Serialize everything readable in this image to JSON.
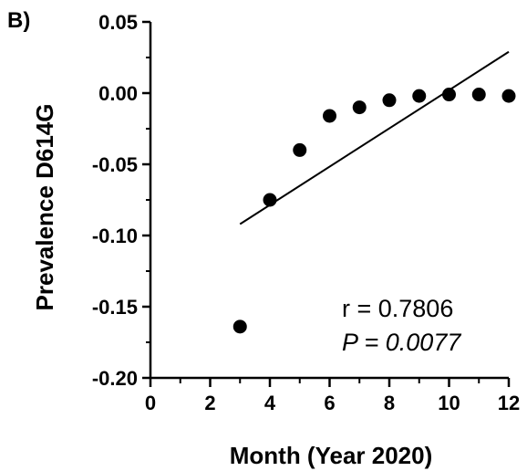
{
  "panel_label": "B)",
  "chart_data": {
    "type": "scatter",
    "title": "",
    "xlabel": "Month (Year 2020)",
    "ylabel": "Prevalence D614G",
    "xlim": [
      0,
      12
    ],
    "ylim": [
      -0.2,
      0.05
    ],
    "x_ticks": [
      0,
      2,
      4,
      6,
      8,
      10,
      12
    ],
    "x_tick_labels": [
      "0",
      "2",
      "4",
      "6",
      "8",
      "10",
      "12"
    ],
    "y_ticks": [
      0.05,
      0.0,
      -0.05,
      -0.1,
      -0.15,
      -0.2
    ],
    "y_tick_labels": [
      "0.05",
      "0.00",
      "-0.05",
      "-0.10",
      "-0.15",
      "-0.20"
    ],
    "grid": false,
    "series": [
      {
        "x": [
          3,
          4,
          5,
          6,
          7,
          8,
          9,
          10,
          11,
          12
        ],
        "y": [
          -0.164,
          -0.075,
          -0.04,
          -0.016,
          -0.01,
          -0.005,
          -0.002,
          -0.001,
          -0.001,
          -0.002
        ],
        "marker": "circle",
        "color": "#000000"
      }
    ],
    "regression_line": {
      "x": [
        3,
        12
      ],
      "y": [
        -0.092,
        0.029
      ],
      "color": "#000000"
    },
    "annotations": {
      "r_text": "r = 0.7806",
      "p_text": "P = 0.0077"
    }
  }
}
